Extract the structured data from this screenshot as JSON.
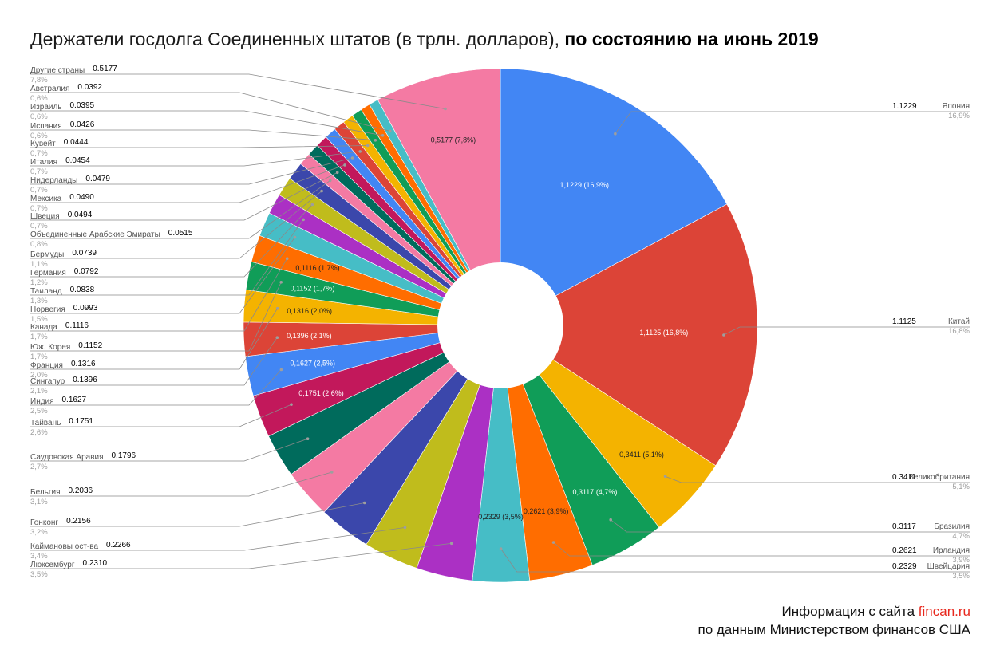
{
  "footer": {
    "line1_prefix": "Информация с сайта ",
    "line1_link": "fincan.ru",
    "line2": "по данным Министерством финансов США"
  },
  "chart_data": {
    "type": "pie",
    "title_main": "Держатели госдолга Соединенных штатов (в трлн. долларов), ",
    "title_emph": "по состоянию на июнь 2019",
    "donut": true,
    "slices": [
      {
        "name": "Япония",
        "value": 1.1229,
        "value_label": "1.1229",
        "percent": "16,9%",
        "data_label": "1,1229 (16,9%)",
        "color": "#4286f4",
        "text_color": "#ffffff"
      },
      {
        "name": "Китай",
        "value": 1.1125,
        "value_label": "1.1125",
        "percent": "16,8%",
        "data_label": "1,1125 (16,8%)",
        "color": "#dc4437",
        "text_color": "#ffffff"
      },
      {
        "name": "Великобритания",
        "value": 0.3411,
        "value_label": "0.3411",
        "percent": "5,1%",
        "data_label": "0,3411 (5,1%)",
        "color": "#f4b300",
        "text_color": "#222222"
      },
      {
        "name": "Бразилия",
        "value": 0.3117,
        "value_label": "0.3117",
        "percent": "4,7%",
        "data_label": "0,3117 (4,7%)",
        "color": "#109d58",
        "text_color": "#ffffff"
      },
      {
        "name": "Ирландия",
        "value": 0.2621,
        "value_label": "0.2621",
        "percent": "3,9%",
        "data_label": "0,2621 (3,9%)",
        "color": "#ff6d00",
        "text_color": "#222222"
      },
      {
        "name": "Швейцария",
        "value": 0.2329,
        "value_label": "0.2329",
        "percent": "3,5%",
        "data_label": "0,2329 (3,5%)",
        "color": "#46bdc6",
        "text_color": "#222222"
      },
      {
        "name": "Люксембург",
        "value": 0.231,
        "value_label": "0.2310",
        "percent": "3,5%",
        "data_label": "",
        "color": "#ab30c4",
        "text_color": "#ffffff"
      },
      {
        "name": "Каймановы ост-ва",
        "value": 0.2266,
        "value_label": "0.2266",
        "percent": "3,4%",
        "data_label": "",
        "color": "#c0bc1c",
        "text_color": "#222222"
      },
      {
        "name": "Гонконг",
        "value": 0.2156,
        "value_label": "0.2156",
        "percent": "3,2%",
        "data_label": "",
        "color": "#3b47ab",
        "text_color": "#ffffff"
      },
      {
        "name": "Бельгия",
        "value": 0.2036,
        "value_label": "0.2036",
        "percent": "3,1%",
        "data_label": "",
        "color": "#f47aa3",
        "text_color": "#222222"
      },
      {
        "name": "Саудовская Аравия",
        "value": 0.1796,
        "value_label": "0.1796",
        "percent": "2,7%",
        "data_label": "",
        "color": "#006b5c",
        "text_color": "#ffffff"
      },
      {
        "name": "Тайвань",
        "value": 0.1751,
        "value_label": "0.1751",
        "percent": "2,6%",
        "data_label": "0,1751 (2,6%)",
        "color": "#c2185b",
        "text_color": "#ffffff"
      },
      {
        "name": "Индия",
        "value": 0.1627,
        "value_label": "0.1627",
        "percent": "2,5%",
        "data_label": "0,1627 (2,5%)",
        "color": "#4286f4",
        "text_color": "#ffffff"
      },
      {
        "name": "Сингапур",
        "value": 0.1396,
        "value_label": "0.1396",
        "percent": "2,1%",
        "data_label": "0,1396 (2,1%)",
        "color": "#dc4437",
        "text_color": "#ffffff"
      },
      {
        "name": "Франция",
        "value": 0.1316,
        "value_label": "0.1316",
        "percent": "2,0%",
        "data_label": "0,1316 (2,0%)",
        "color": "#f4b300",
        "text_color": "#222222"
      },
      {
        "name": "Юж. Корея",
        "value": 0.1152,
        "value_label": "0.1152",
        "percent": "1,7%",
        "data_label": "0,1152 (1,7%)",
        "color": "#109d58",
        "text_color": "#ffffff"
      },
      {
        "name": "Канада",
        "value": 0.1116,
        "value_label": "0.1116",
        "percent": "1,7%",
        "data_label": "0,1116 (1,7%)",
        "color": "#ff6d00",
        "text_color": "#222222"
      },
      {
        "name": "Норвегия",
        "value": 0.0993,
        "value_label": "0.0993",
        "percent": "1,5%",
        "data_label": "",
        "color": "#46bdc6",
        "text_color": "#222222"
      },
      {
        "name": "Таиланд",
        "value": 0.0838,
        "value_label": "0.0838",
        "percent": "1,3%",
        "data_label": "",
        "color": "#ab30c4",
        "text_color": "#ffffff"
      },
      {
        "name": "Германия",
        "value": 0.0792,
        "value_label": "0.0792",
        "percent": "1,2%",
        "data_label": "",
        "color": "#c0bc1c",
        "text_color": "#222222"
      },
      {
        "name": "Бермуды",
        "value": 0.0739,
        "value_label": "0.0739",
        "percent": "1,1%",
        "data_label": "",
        "color": "#3b47ab",
        "text_color": "#ffffff"
      },
      {
        "name": "Объединенные Арабские Эмираты",
        "value": 0.0515,
        "value_label": "0.0515",
        "percent": "0,8%",
        "data_label": "",
        "color": "#f47aa3",
        "text_color": "#222222"
      },
      {
        "name": "Швеция",
        "value": 0.0494,
        "value_label": "0.0494",
        "percent": "0,7%",
        "data_label": "",
        "color": "#006b5c",
        "text_color": "#ffffff"
      },
      {
        "name": "Мексика",
        "value": 0.049,
        "value_label": "0.0490",
        "percent": "0,7%",
        "data_label": "",
        "color": "#c2185b",
        "text_color": "#ffffff"
      },
      {
        "name": "Нидерланды",
        "value": 0.0479,
        "value_label": "0.0479",
        "percent": "0,7%",
        "data_label": "",
        "color": "#4286f4",
        "text_color": "#ffffff"
      },
      {
        "name": "Италия",
        "value": 0.0454,
        "value_label": "0.0454",
        "percent": "0,7%",
        "data_label": "",
        "color": "#dc4437",
        "text_color": "#ffffff"
      },
      {
        "name": "Кувейт",
        "value": 0.0444,
        "value_label": "0.0444",
        "percent": "0,7%",
        "data_label": "",
        "color": "#f4b300",
        "text_color": "#222222"
      },
      {
        "name": "Испания",
        "value": 0.0426,
        "value_label": "0.0426",
        "percent": "0,6%",
        "data_label": "",
        "color": "#109d58",
        "text_color": "#ffffff"
      },
      {
        "name": "Израиль",
        "value": 0.0395,
        "value_label": "0.0395",
        "percent": "0,6%",
        "data_label": "",
        "color": "#ff6d00",
        "text_color": "#222222"
      },
      {
        "name": "Австралия",
        "value": 0.0392,
        "value_label": "0.0392",
        "percent": "0,6%",
        "data_label": "",
        "color": "#46bdc6",
        "text_color": "#222222"
      },
      {
        "name": "Другие страны",
        "value": 0.5177,
        "value_label": "0.5177",
        "percent": "7,8%",
        "data_label": "0,5177 (7,8%)",
        "color": "#f47aa3",
        "text_color": "#222222"
      }
    ]
  }
}
